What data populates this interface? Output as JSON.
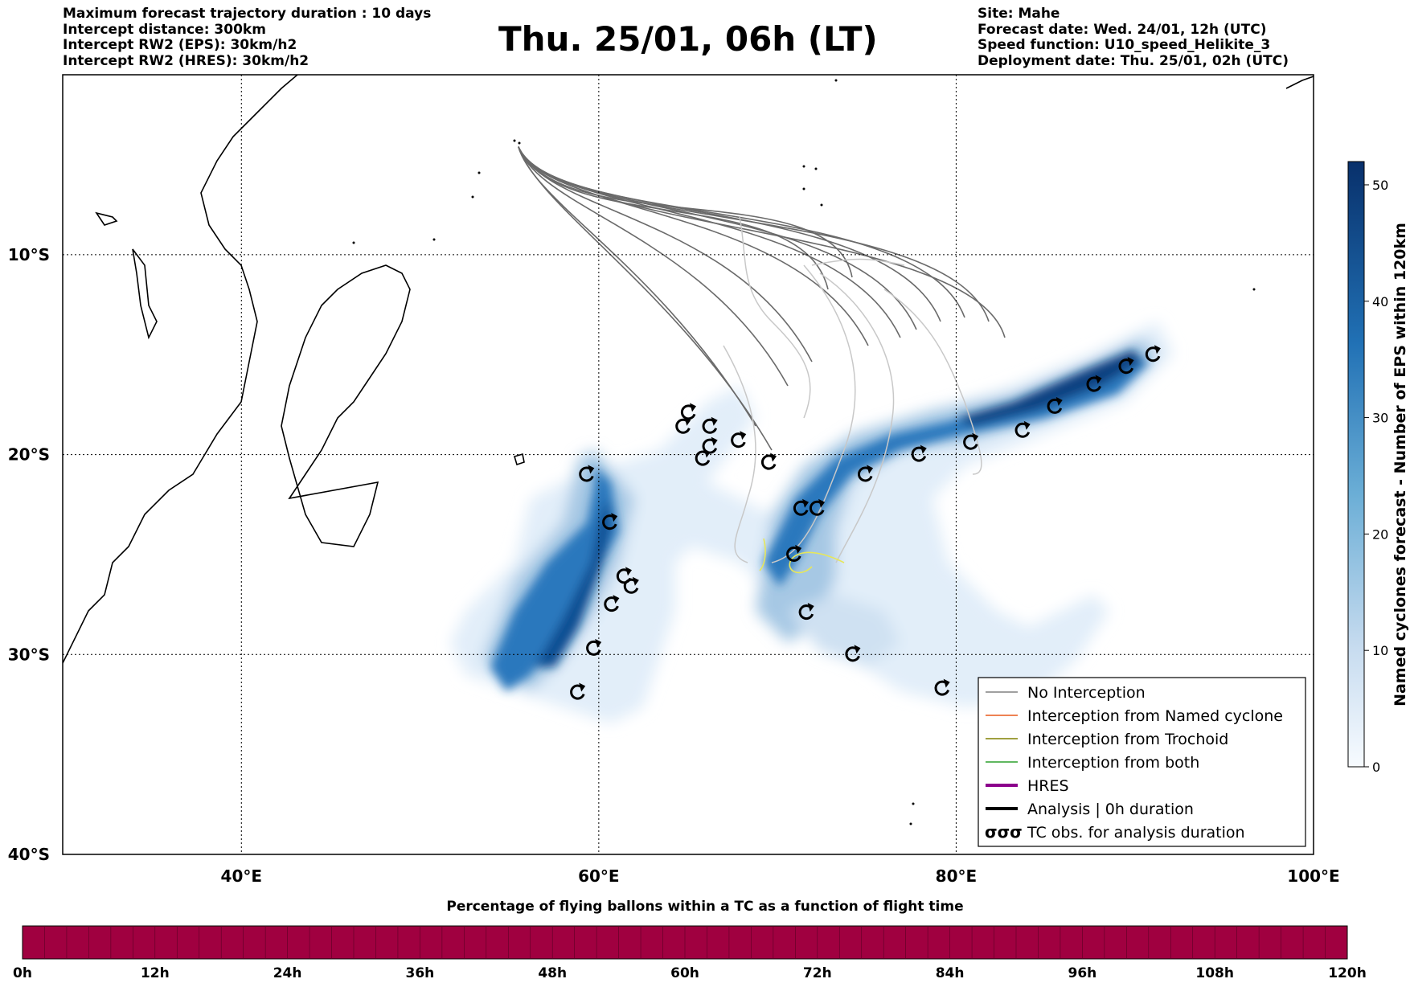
{
  "header_left": [
    "Maximum forecast trajectory duration : 10 days",
    "Intercept distance: 300km",
    "Intercept RW2 (EPS):  30km/h2",
    "Intercept RW2 (HRES): 30km/h2"
  ],
  "header_right": [
    "Site: Mahe",
    "Forecast date: Wed. 24/01, 12h (UTC)",
    "Speed function: U10_speed_Helikite_3",
    "Deployment date: Thu. 25/01, 02h (UTC)"
  ],
  "title": "Thu. 25/01, 06h (LT)",
  "map": {
    "lon_range": [
      30,
      100
    ],
    "lat_range": [
      -40,
      -1
    ],
    "lon_ticks": [
      {
        "lon": 40,
        "label": "40°E"
      },
      {
        "lon": 60,
        "label": "60°E"
      },
      {
        "lon": 80,
        "label": "80°E"
      },
      {
        "lon": 100,
        "label": "100°E"
      }
    ],
    "lat_ticks": [
      {
        "lat": -10,
        "label": "10°S"
      },
      {
        "lat": -20,
        "label": "20°S"
      },
      {
        "lat": -30,
        "label": "30°S"
      },
      {
        "lat": -40,
        "label": "40°S"
      }
    ],
    "grid": true,
    "site_lonlat": [
      55.5,
      -4.6
    ]
  },
  "colorbar_right": {
    "label": "Named cyclones forecast - Number of EPS within 120km",
    "ticks": [
      "0",
      "10",
      "20",
      "30",
      "40",
      "50"
    ],
    "range": [
      0,
      52
    ],
    "color_low": "#deebf7",
    "color_high": "#08306b"
  },
  "legend": {
    "placement": "lower-right",
    "items": [
      {
        "label": "No Interception",
        "color": "#808080",
        "style": "thin"
      },
      {
        "label": "Interception from Named cyclone",
        "color": "#e8591a",
        "style": "thin"
      },
      {
        "label": "Interception from Trochoid",
        "color": "#808000",
        "style": "thin"
      },
      {
        "label": "Interception from both",
        "color": "#2ca02c",
        "style": "thin"
      },
      {
        "label": "HRES",
        "color": "#8b008b",
        "style": "thick"
      },
      {
        "label": "Analysis | 0h duration",
        "color": "#000000",
        "style": "thick"
      },
      {
        "label": "TC obs. for analysis duration",
        "color": "#000000",
        "style": "symbol",
        "symbol": "σσσ"
      }
    ]
  },
  "tc_observations": [
    [
      65,
      -17.9
    ],
    [
      64.7,
      -18.6
    ],
    [
      66.2,
      -18.6
    ],
    [
      66.2,
      -19.6
    ],
    [
      67.8,
      -19.3
    ],
    [
      65.8,
      -20.2
    ],
    [
      69.5,
      -20.4
    ],
    [
      59.3,
      -21.0
    ],
    [
      60.6,
      -23.4
    ],
    [
      61.4,
      -26.1
    ],
    [
      61.8,
      -26.6
    ],
    [
      60.7,
      -27.5
    ],
    [
      59.7,
      -29.7
    ],
    [
      58.8,
      -31.9
    ],
    [
      71.3,
      -22.7
    ],
    [
      72.2,
      -22.7
    ],
    [
      70.9,
      -25.0
    ],
    [
      71.6,
      -27.9
    ],
    [
      74.2,
      -30.0
    ],
    [
      79.2,
      -31.7
    ],
    [
      74.9,
      -21.0
    ],
    [
      77.9,
      -20.0
    ],
    [
      80.8,
      -19.4
    ],
    [
      83.7,
      -18.8
    ],
    [
      85.5,
      -17.6
    ],
    [
      87.7,
      -16.5
    ],
    [
      89.5,
      -15.6
    ],
    [
      91.0,
      -15.0
    ]
  ],
  "bottom_colorbar": {
    "title": "Percentage of flying ballons within a TC as a function of flight time",
    "color": "#a00040",
    "ticks": [
      "0h",
      "12h",
      "24h",
      "36h",
      "48h",
      "60h",
      "72h",
      "84h",
      "96h",
      "108h",
      "120h"
    ]
  }
}
